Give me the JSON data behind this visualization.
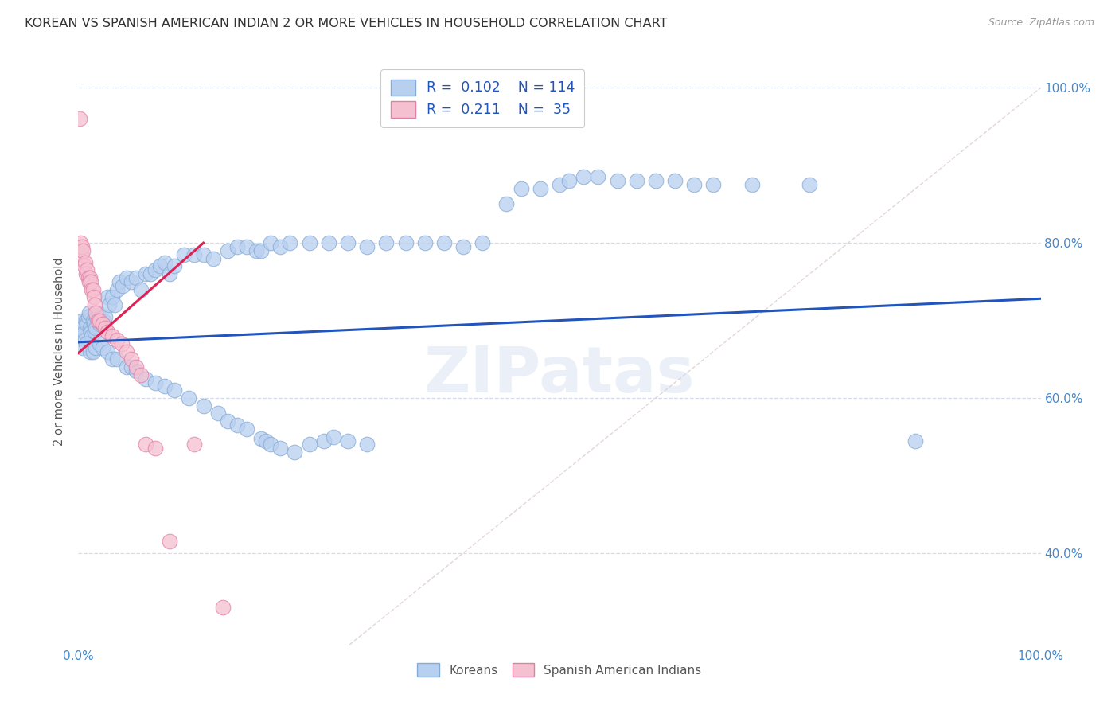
{
  "title": "KOREAN VS SPANISH AMERICAN INDIAN 2 OR MORE VEHICLES IN HOUSEHOLD CORRELATION CHART",
  "source": "Source: ZipAtlas.com",
  "ylabel": "2 or more Vehicles in Household",
  "xlim": [
    0,
    1.0
  ],
  "ylim": [
    0.28,
    1.04
  ],
  "x_ticks": [
    0.0,
    0.2,
    0.4,
    0.6,
    0.8,
    1.0
  ],
  "x_tick_labels": [
    "0.0%",
    "",
    "",
    "",
    "",
    "100.0%"
  ],
  "y_ticks": [
    0.4,
    0.6,
    0.8,
    1.0
  ],
  "y_tick_labels": [
    "40.0%",
    "60.0%",
    "80.0%",
    "100.0%"
  ],
  "watermark": "ZIPatas",
  "background_color": "#ffffff",
  "grid_color": "#d0d8e8",
  "title_color": "#333333",
  "axis_label_color": "#555555",
  "tick_label_color": "#4488cc",
  "blue_dot_color": "#b8d0f0",
  "blue_dot_edge": "#85aad5",
  "pink_dot_color": "#f5c0d0",
  "pink_dot_edge": "#e080a8",
  "blue_line_color": "#2255bb",
  "pink_line_color": "#dd2255",
  "ref_line_color": "#ddcccc",
  "blue_line_x": [
    0.0,
    1.0
  ],
  "blue_line_y": [
    0.672,
    0.728
  ],
  "pink_line_x": [
    0.0,
    0.13
  ],
  "pink_line_y": [
    0.658,
    0.8
  ],
  "blue_scatter_x": [
    0.002,
    0.003,
    0.004,
    0.005,
    0.006,
    0.007,
    0.008,
    0.009,
    0.01,
    0.011,
    0.012,
    0.013,
    0.014,
    0.015,
    0.016,
    0.017,
    0.018,
    0.019,
    0.02,
    0.021,
    0.022,
    0.023,
    0.025,
    0.026,
    0.028,
    0.03,
    0.032,
    0.035,
    0.038,
    0.04,
    0.043,
    0.046,
    0.05,
    0.055,
    0.06,
    0.065,
    0.07,
    0.075,
    0.08,
    0.085,
    0.09,
    0.095,
    0.1,
    0.11,
    0.12,
    0.13,
    0.14,
    0.155,
    0.165,
    0.175,
    0.185,
    0.19,
    0.2,
    0.21,
    0.22,
    0.24,
    0.26,
    0.28,
    0.3,
    0.32,
    0.34,
    0.36,
    0.38,
    0.4,
    0.42,
    0.445,
    0.46,
    0.48,
    0.5,
    0.51,
    0.525,
    0.54,
    0.56,
    0.58,
    0.6,
    0.62,
    0.64,
    0.66,
    0.7,
    0.76,
    0.005,
    0.008,
    0.012,
    0.015,
    0.018,
    0.022,
    0.025,
    0.03,
    0.035,
    0.04,
    0.05,
    0.055,
    0.06,
    0.07,
    0.08,
    0.09,
    0.1,
    0.115,
    0.13,
    0.145,
    0.155,
    0.165,
    0.175,
    0.19,
    0.195,
    0.2,
    0.21,
    0.225,
    0.24,
    0.255,
    0.265,
    0.28,
    0.3,
    0.87
  ],
  "blue_scatter_y": [
    0.68,
    0.695,
    0.7,
    0.69,
    0.685,
    0.675,
    0.7,
    0.695,
    0.705,
    0.71,
    0.69,
    0.685,
    0.68,
    0.7,
    0.695,
    0.685,
    0.69,
    0.705,
    0.71,
    0.7,
    0.695,
    0.7,
    0.695,
    0.7,
    0.705,
    0.73,
    0.72,
    0.73,
    0.72,
    0.74,
    0.75,
    0.745,
    0.755,
    0.75,
    0.755,
    0.74,
    0.76,
    0.76,
    0.765,
    0.77,
    0.775,
    0.76,
    0.77,
    0.785,
    0.785,
    0.785,
    0.78,
    0.79,
    0.795,
    0.795,
    0.79,
    0.79,
    0.8,
    0.795,
    0.8,
    0.8,
    0.8,
    0.8,
    0.795,
    0.8,
    0.8,
    0.8,
    0.8,
    0.795,
    0.8,
    0.85,
    0.87,
    0.87,
    0.875,
    0.88,
    0.885,
    0.885,
    0.88,
    0.88,
    0.88,
    0.88,
    0.875,
    0.875,
    0.875,
    0.875,
    0.665,
    0.67,
    0.66,
    0.66,
    0.665,
    0.67,
    0.665,
    0.66,
    0.65,
    0.65,
    0.64,
    0.64,
    0.635,
    0.625,
    0.62,
    0.615,
    0.61,
    0.6,
    0.59,
    0.58,
    0.57,
    0.565,
    0.56,
    0.548,
    0.545,
    0.54,
    0.535,
    0.53,
    0.54,
    0.545,
    0.55,
    0.545,
    0.54,
    0.545
  ],
  "pink_scatter_x": [
    0.001,
    0.002,
    0.003,
    0.004,
    0.005,
    0.006,
    0.007,
    0.008,
    0.009,
    0.01,
    0.011,
    0.012,
    0.013,
    0.014,
    0.015,
    0.016,
    0.017,
    0.018,
    0.02,
    0.022,
    0.025,
    0.028,
    0.03,
    0.035,
    0.04,
    0.045,
    0.05,
    0.055,
    0.06,
    0.065,
    0.07,
    0.08,
    0.095,
    0.12,
    0.15
  ],
  "pink_scatter_y": [
    0.96,
    0.8,
    0.785,
    0.795,
    0.79,
    0.77,
    0.775,
    0.76,
    0.765,
    0.755,
    0.75,
    0.755,
    0.75,
    0.74,
    0.74,
    0.73,
    0.72,
    0.71,
    0.7,
    0.7,
    0.695,
    0.69,
    0.685,
    0.68,
    0.675,
    0.67,
    0.66,
    0.65,
    0.64,
    0.63,
    0.54,
    0.535,
    0.415,
    0.54,
    0.33
  ]
}
